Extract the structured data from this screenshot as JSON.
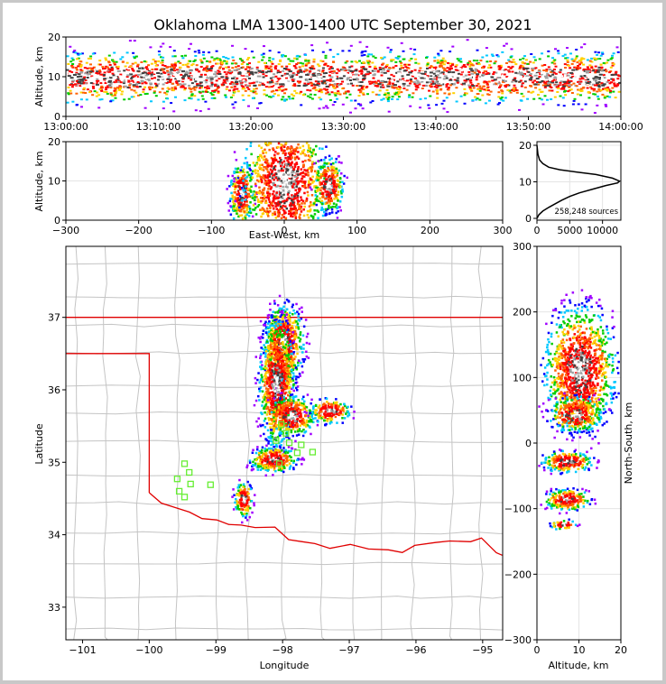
{
  "title": "Oklahoma LMA 1300-1400 UTC September 30, 2021",
  "chart_data": [
    {
      "id": "time-height",
      "type": "heatmap",
      "xlabel": "",
      "ylabel": "Altitude, km",
      "x_ticks": [
        "13:00:00",
        "13:10:00",
        "13:20:00",
        "13:30:00",
        "13:40:00",
        "13:50:00",
        "14:00:00"
      ],
      "ylim": [
        0,
        20
      ],
      "y_ticks": [
        0,
        10,
        20
      ],
      "core_altitude_km": [
        7,
        13
      ]
    },
    {
      "id": "ew-height",
      "type": "heatmap",
      "xlabel": "East-West, km",
      "ylabel": "Altitude, km",
      "xlim": [
        -300,
        300
      ],
      "x_ticks": [
        -300,
        -200,
        -100,
        0,
        100,
        200,
        300
      ],
      "ylim": [
        0,
        20
      ],
      "y_ticks": [
        0,
        10,
        20
      ],
      "clusters": [
        {
          "x": -60,
          "y": 7,
          "rx": 8,
          "ry": 4
        },
        {
          "x": 0,
          "y": 10,
          "rx": 30,
          "ry": 9
        },
        {
          "x": 60,
          "y": 9,
          "rx": 10,
          "ry": 3.5
        }
      ]
    },
    {
      "id": "altitude-histogram",
      "type": "line",
      "annotation": "258,248 sources",
      "xlim": [
        0,
        12800
      ],
      "x_ticks": [
        0,
        5000,
        10000
      ],
      "ylim": [
        0,
        20
      ],
      "y_ticks": [
        0,
        10,
        20
      ],
      "x": [
        0,
        300,
        900,
        1800,
        2800,
        3800,
        5000,
        6500,
        8500,
        10500,
        12300,
        12600,
        11500,
        9000,
        6000,
        3500,
        1800,
        900,
        400,
        150,
        0
      ],
      "y": [
        0,
        1,
        2,
        3,
        4,
        5,
        6,
        7,
        8,
        9,
        9.7,
        10.2,
        11,
        12,
        12.7,
        13.3,
        14,
        15,
        16,
        17.5,
        20
      ]
    },
    {
      "id": "plan-view",
      "type": "heatmap",
      "xlabel": "Longitude",
      "ylabel": "Latitude",
      "xlim": [
        -101.25,
        -94.7
      ],
      "x_ticks": [
        -101,
        -100,
        -99,
        -98,
        -97,
        -96,
        -95
      ],
      "ylim": [
        32.55,
        37.98
      ],
      "y_ticks": [
        33,
        34,
        35,
        36,
        37
      ],
      "stations": [
        [
          -99.47,
          34.98
        ],
        [
          -99.4,
          34.86
        ],
        [
          -99.58,
          34.77
        ],
        [
          -99.38,
          34.7
        ],
        [
          -99.55,
          34.6
        ],
        [
          -99.47,
          34.52
        ],
        [
          -99.08,
          34.69
        ],
        [
          -98.1,
          35.3
        ],
        [
          -97.95,
          35.4
        ],
        [
          -98.02,
          35.52
        ],
        [
          -97.9,
          35.27
        ],
        [
          -97.72,
          35.24
        ],
        [
          -97.78,
          35.13
        ],
        [
          -97.55,
          35.14
        ],
        [
          -98.05,
          34.98
        ]
      ]
    },
    {
      "id": "ns-height",
      "type": "heatmap",
      "xlabel": "Altitude, km",
      "ylabel": "North-South, km",
      "xlim": [
        0,
        20
      ],
      "x_ticks": [
        0,
        10,
        20
      ],
      "ylim": [
        -300,
        300
      ],
      "y_ticks": [
        -300,
        -200,
        -100,
        0,
        100,
        200,
        300
      ]
    }
  ]
}
